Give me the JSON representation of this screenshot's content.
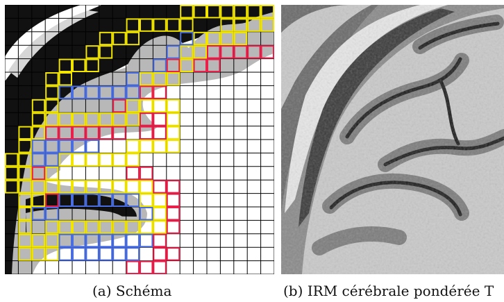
{
  "figure": {
    "panel_a": {
      "caption": "(a) Schéma",
      "colors": {
        "background_white": "#ffffff",
        "csf_dark": "#111111",
        "gray_matter": "#b8b8b8",
        "skull_light": "#d6d6d6",
        "grid_line": "#000000",
        "border_voxel_yellow": "#f2e600",
        "inner_voxel_blue": "#4a6ee0",
        "wm_boundary_red": "#e8204a"
      }
    },
    "panel_b": {
      "caption": "(b) IRM cérébrale pondérée T"
    }
  }
}
